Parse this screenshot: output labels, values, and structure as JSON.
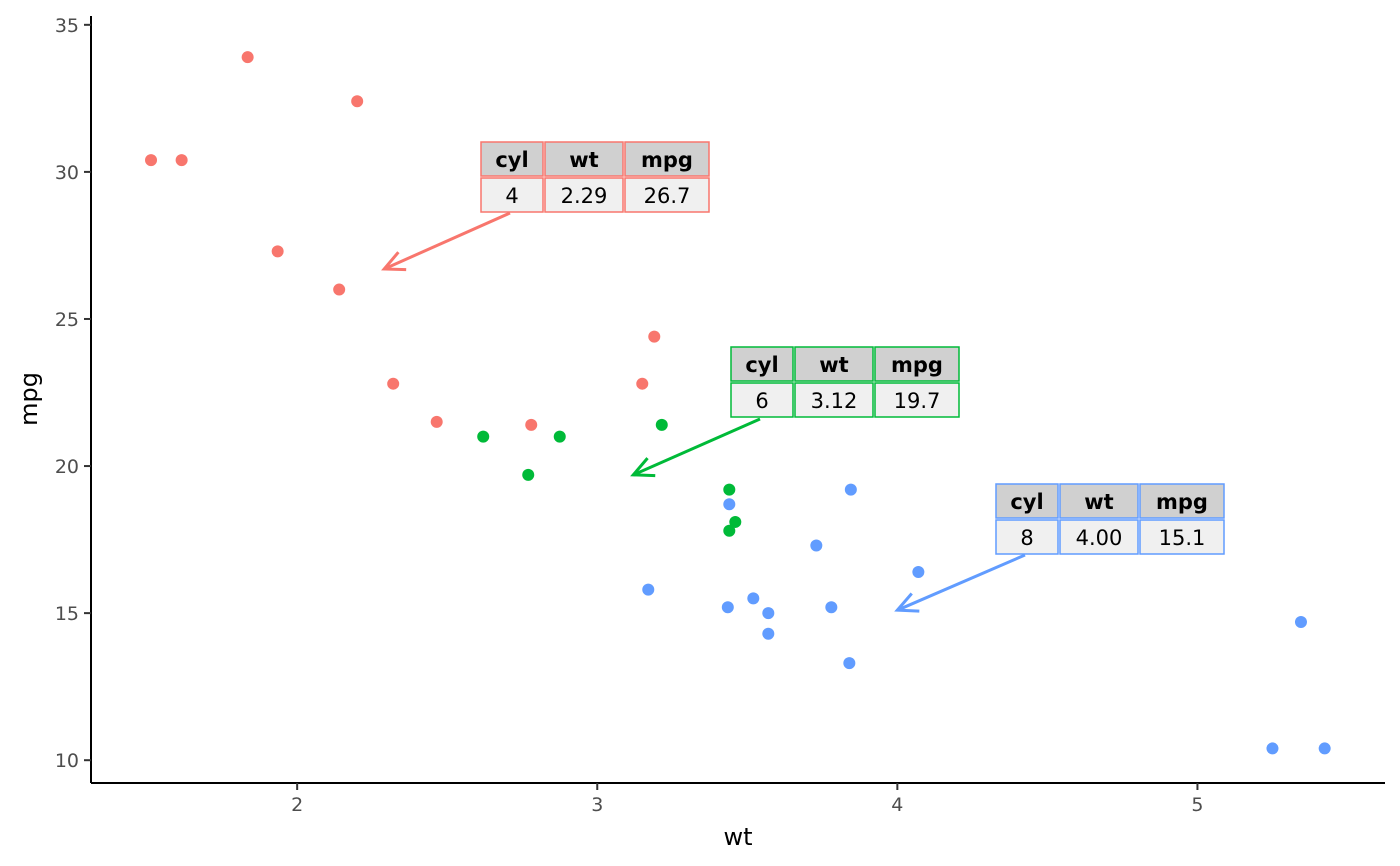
{
  "chart_data": {
    "type": "scatter",
    "xlabel": "wt",
    "ylabel": "mpg",
    "xlim": [
      1.313,
      5.625
    ],
    "ylim": [
      9.225,
      35.3
    ],
    "x_ticks": [
      2,
      3,
      4,
      5
    ],
    "y_ticks": [
      10,
      15,
      20,
      25,
      30,
      35
    ],
    "x_tick_labels": [
      "2",
      "3",
      "4",
      "5"
    ],
    "y_tick_labels": [
      "10",
      "15",
      "20",
      "25",
      "30",
      "35"
    ],
    "grid": false,
    "legend": "none",
    "groups": [
      {
        "cyl": "4",
        "color": "#F8766D",
        "points": [
          {
            "x": 2.32,
            "y": 22.8
          },
          {
            "x": 3.19,
            "y": 24.4
          },
          {
            "x": 3.15,
            "y": 22.8
          },
          {
            "x": 2.2,
            "y": 32.4
          },
          {
            "x": 1.615,
            "y": 30.4
          },
          {
            "x": 1.835,
            "y": 33.9
          },
          {
            "x": 2.465,
            "y": 21.5
          },
          {
            "x": 1.935,
            "y": 27.3
          },
          {
            "x": 2.14,
            "y": 26.0
          },
          {
            "x": 1.513,
            "y": 30.4
          },
          {
            "x": 2.78,
            "y": 21.4
          }
        ],
        "table": {
          "headers": [
            "cyl",
            "wt",
            "mpg"
          ],
          "values": [
            "4",
            "2.29",
            "26.7"
          ]
        },
        "arrow_target": {
          "x": 2.29,
          "y": 26.7
        }
      },
      {
        "cyl": "6",
        "color": "#00BA38",
        "points": [
          {
            "x": 2.62,
            "y": 21.0
          },
          {
            "x": 2.875,
            "y": 21.0
          },
          {
            "x": 3.215,
            "y": 21.4
          },
          {
            "x": 3.46,
            "y": 18.1
          },
          {
            "x": 3.44,
            "y": 19.2
          },
          {
            "x": 3.44,
            "y": 17.8
          },
          {
            "x": 2.77,
            "y": 19.7
          }
        ],
        "table": {
          "headers": [
            "cyl",
            "wt",
            "mpg"
          ],
          "values": [
            "6",
            "3.12",
            "19.7"
          ]
        },
        "arrow_target": {
          "x": 3.12,
          "y": 19.7
        }
      },
      {
        "cyl": "8",
        "color": "#619CFF",
        "points": [
          {
            "x": 3.44,
            "y": 18.7
          },
          {
            "x": 3.57,
            "y": 14.3
          },
          {
            "x": 4.07,
            "y": 16.4
          },
          {
            "x": 3.73,
            "y": 17.3
          },
          {
            "x": 3.78,
            "y": 15.2
          },
          {
            "x": 5.25,
            "y": 10.4
          },
          {
            "x": 5.424,
            "y": 10.4
          },
          {
            "x": 5.345,
            "y": 14.7
          },
          {
            "x": 3.52,
            "y": 15.5
          },
          {
            "x": 3.435,
            "y": 15.2
          },
          {
            "x": 3.84,
            "y": 13.3
          },
          {
            "x": 3.845,
            "y": 19.2
          },
          {
            "x": 3.17,
            "y": 15.8
          },
          {
            "x": 3.57,
            "y": 15.0
          }
        ],
        "table": {
          "headers": [
            "cyl",
            "wt",
            "mpg"
          ],
          "values": [
            "8",
            "4.00",
            "15.1"
          ]
        },
        "arrow_target": {
          "x": 4.0,
          "y": 15.1
        }
      }
    ]
  }
}
